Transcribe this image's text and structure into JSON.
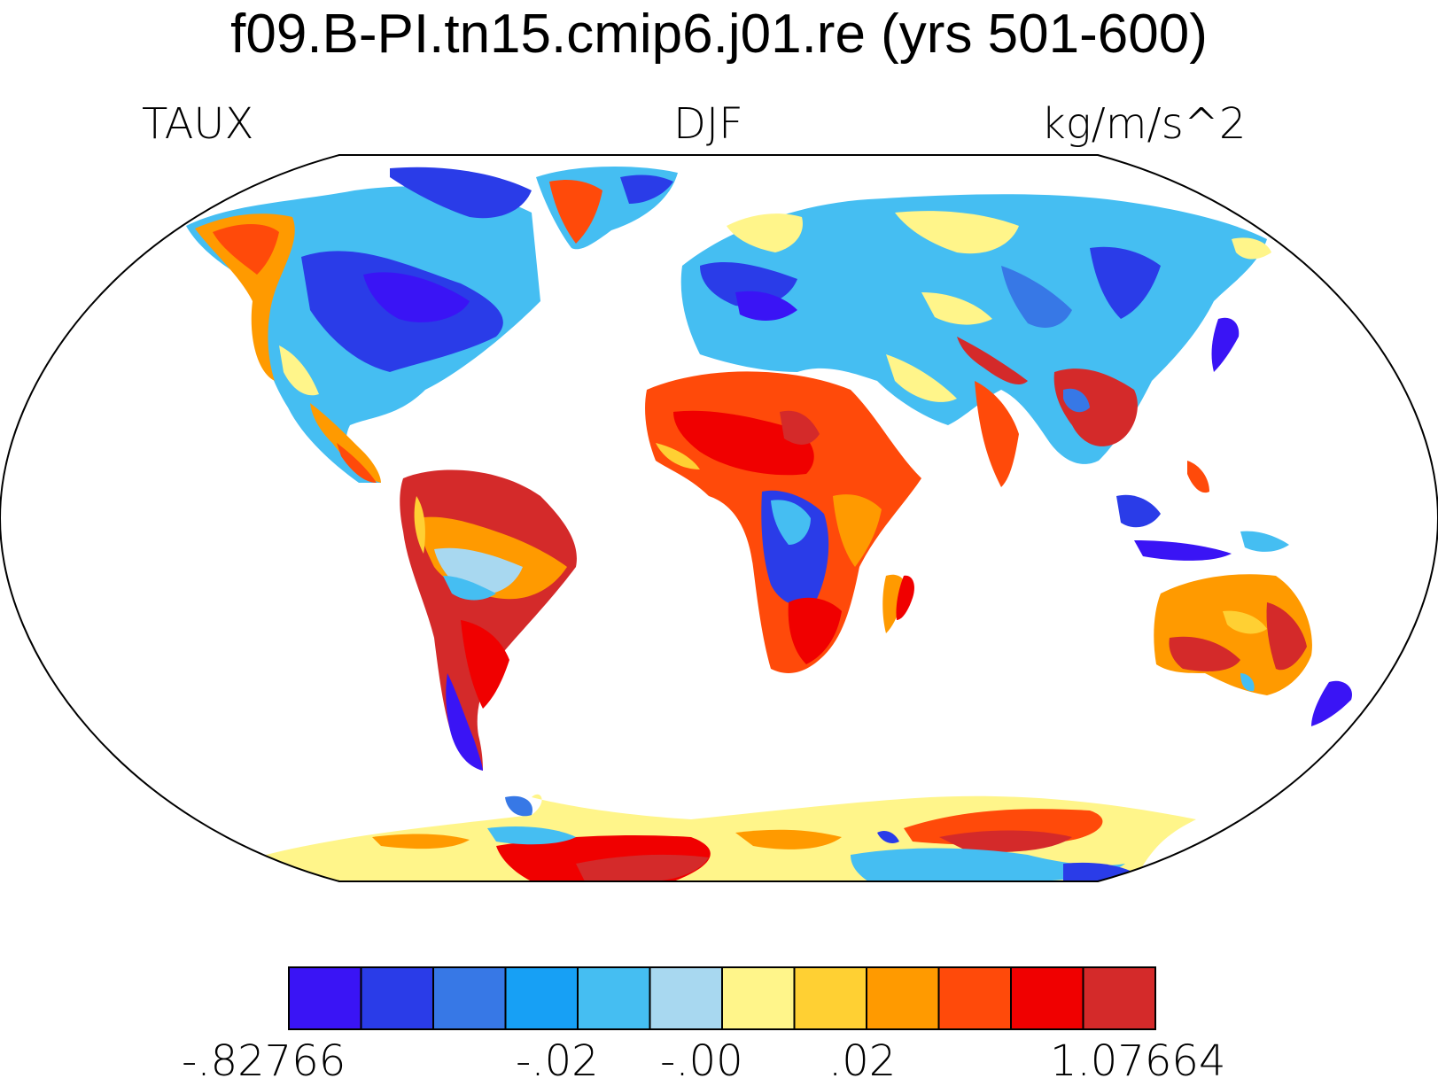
{
  "header": {
    "title": "f09.B-PI.tn15.cmip6.j01.re (yrs 501-600)",
    "variable": "TAUX",
    "season": "DJF",
    "units": "kg/m/s^2"
  },
  "colorbar": {
    "colors": [
      "#3a14f5",
      "#2a3ce8",
      "#3778e6",
      "#17a0f5",
      "#45bef2",
      "#a8d8f0",
      "#fff58a",
      "#ffd033",
      "#ff9a00",
      "#ff4a0a",
      "#f00000",
      "#d42a2a"
    ],
    "labels": [
      "-.82766",
      "-.02",
      "-.00",
      ".02",
      "1.07664"
    ],
    "min": -0.82766,
    "max": 1.07664
  }
}
